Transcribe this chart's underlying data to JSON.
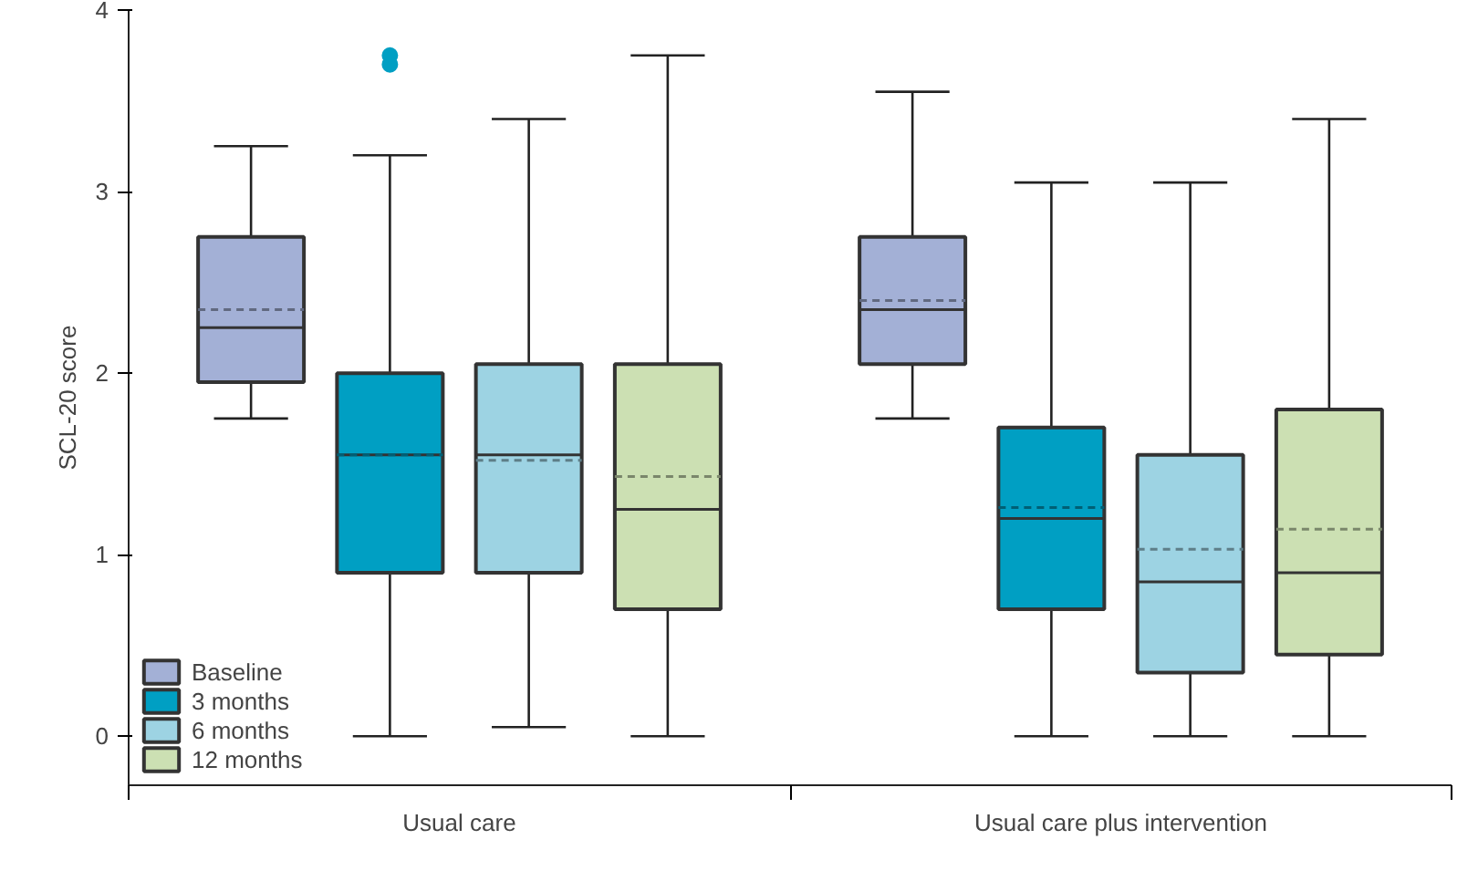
{
  "chart_data": {
    "type": "box",
    "ylabel": "SCL-20 score",
    "categories": [
      "Usual care",
      "Usual care plus intervention"
    ],
    "ylim": [
      -0.27,
      4
    ],
    "yticks": [
      0,
      1,
      2,
      3,
      4
    ],
    "grid": false,
    "legend": "bottom left",
    "series": [
      {
        "name": "Baseline",
        "color": "#a3b0d6",
        "boxes": [
          {
            "low": 1.75,
            "q1": 1.95,
            "median": 2.25,
            "q3": 2.75,
            "high": 3.25,
            "mean": 2.35
          },
          {
            "low": 1.75,
            "q1": 2.05,
            "median": 2.35,
            "q3": 2.75,
            "high": 3.55,
            "mean": 2.4
          }
        ]
      },
      {
        "name": "3 months",
        "color": "#009fc3",
        "boxes": [
          {
            "low": 0,
            "q1": 0.9,
            "median": 1.55,
            "q3": 2.0,
            "high": 3.2,
            "mean": 1.55,
            "outliers": [
              3.7,
              3.75
            ]
          },
          {
            "low": 0,
            "q1": 0.7,
            "median": 1.2,
            "q3": 1.7,
            "high": 3.05,
            "mean": 1.26
          }
        ]
      },
      {
        "name": "6 months",
        "color": "#9dd3e3",
        "boxes": [
          {
            "low": 0.05,
            "q1": 0.9,
            "median": 1.55,
            "q3": 2.05,
            "high": 3.4,
            "mean": 1.52
          },
          {
            "low": 0,
            "q1": 0.35,
            "median": 0.85,
            "q3": 1.55,
            "high": 3.05,
            "mean": 1.03
          }
        ]
      },
      {
        "name": "12 months",
        "color": "#cce0b3",
        "boxes": [
          {
            "low": 0,
            "q1": 0.7,
            "median": 1.25,
            "q3": 2.05,
            "high": 3.75,
            "mean": 1.43
          },
          {
            "low": 0,
            "q1": 0.45,
            "median": 0.9,
            "q3": 1.8,
            "high": 3.4,
            "mean": 1.14
          }
        ]
      }
    ]
  }
}
